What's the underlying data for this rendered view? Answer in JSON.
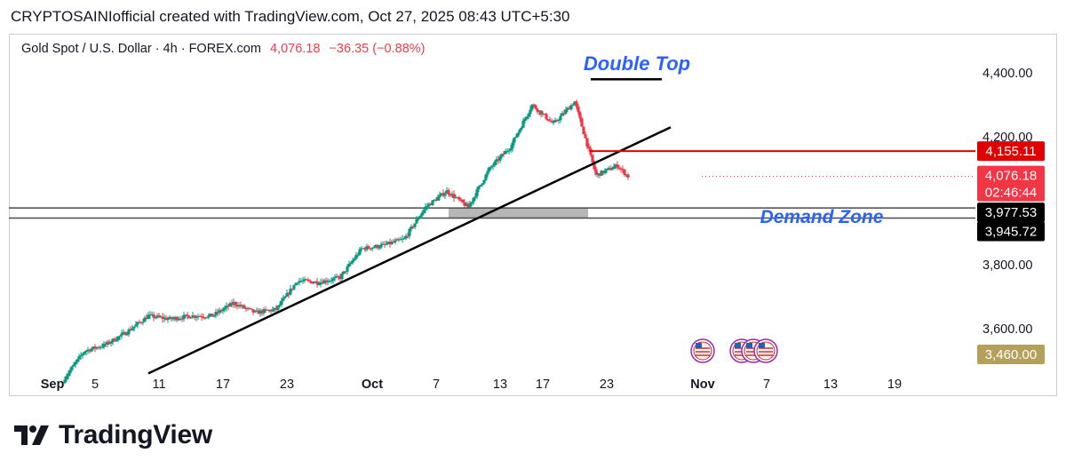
{
  "header": {
    "publisher": "CRYPTOSAINIofficial created with TradingView.com, Oct 27, 2025 08:43 UTC+5:30"
  },
  "legend": {
    "symbol": "Gold Spot / U.S. Dollar · 4h · FOREX.com",
    "last": "4,076.18",
    "change": "−36.35 (−0.88%)"
  },
  "brand": {
    "name": "TradingView"
  },
  "annotations": {
    "double_top": "Double Top",
    "demand_zone": "Demand Zone"
  },
  "price_tags": {
    "resistance": "4,155.11",
    "last": "4,076.18",
    "countdown": "02:46:44",
    "zone_top": "3,977.53",
    "zone_bottom": "3,945.72",
    "low": "3,460.00"
  },
  "colors": {
    "up": "#089981",
    "down": "#f23645",
    "annotation": "#2962ff",
    "resistance": "#e00000",
    "zone": "#9e9e9e"
  },
  "chart_data": {
    "type": "candlestick",
    "title": "Gold Spot / U.S. Dollar · 4h · FOREX.com",
    "timeframe": "4h",
    "ylim": [
      3400,
      4480
    ],
    "y_ticks": [
      "4,400.00",
      "4,200.00",
      "3,800.00",
      "3,600.00"
    ],
    "x_tick_labels": [
      "Sep",
      "5",
      "11",
      "17",
      "23",
      "Oct",
      "7",
      "13",
      "17",
      "23",
      "Nov",
      "7",
      "13",
      "19"
    ],
    "x_tick_days": [
      0,
      4,
      10,
      16,
      22,
      30,
      36,
      42,
      46,
      52,
      61,
      67,
      73,
      79
    ],
    "daily_closes": [
      {
        "day": 1,
        "close": 3440
      },
      {
        "day": 3,
        "close": 3530
      },
      {
        "day": 5,
        "close": 3550
      },
      {
        "day": 7,
        "close": 3590
      },
      {
        "day": 9,
        "close": 3640
      },
      {
        "day": 11,
        "close": 3630
      },
      {
        "day": 13,
        "close": 3640
      },
      {
        "day": 15,
        "close": 3640
      },
      {
        "day": 17,
        "close": 3680
      },
      {
        "day": 19,
        "close": 3650
      },
      {
        "day": 21,
        "close": 3660
      },
      {
        "day": 23,
        "close": 3750
      },
      {
        "day": 25,
        "close": 3745
      },
      {
        "day": 27,
        "close": 3760
      },
      {
        "day": 29,
        "close": 3850
      },
      {
        "day": 31,
        "close": 3860
      },
      {
        "day": 33,
        "close": 3880
      },
      {
        "day": 35,
        "close": 3980
      },
      {
        "day": 37,
        "close": 4030
      },
      {
        "day": 39,
        "close": 3980
      },
      {
        "day": 41,
        "close": 4100
      },
      {
        "day": 43,
        "close": 4170
      },
      {
        "day": 45,
        "close": 4300
      },
      {
        "day": 47,
        "close": 4240
      },
      {
        "day": 49,
        "close": 4310
      },
      {
        "day": 51,
        "close": 4080
      },
      {
        "day": 53,
        "close": 4110
      },
      {
        "day": 54,
        "close": 4076
      }
    ],
    "double_top_level": 4380,
    "resistance_level": 4155.11,
    "demand_zone": [
      3945.72,
      3977.53
    ],
    "trendline": [
      {
        "day": 9,
        "price": 3460
      },
      {
        "day": 58,
        "price": 4230
      }
    ],
    "last_price": 4076.18
  }
}
